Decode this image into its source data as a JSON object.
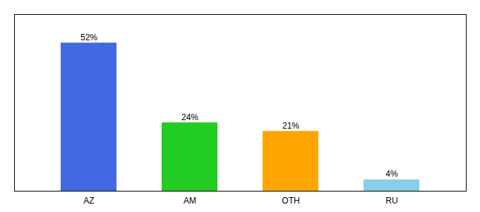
{
  "chart_data": {
    "type": "bar",
    "categories": [
      "AZ",
      "AM",
      "OTH",
      "RU"
    ],
    "values": [
      52,
      24,
      21,
      4
    ],
    "value_labels": [
      "52%",
      "24%",
      "21%",
      "4%"
    ],
    "colors": [
      "#4169E1",
      "#22CC22",
      "#FFA500",
      "#87CEEB"
    ],
    "ylim": [
      0,
      62
    ],
    "data_labels": true,
    "tick_labels": "x"
  }
}
